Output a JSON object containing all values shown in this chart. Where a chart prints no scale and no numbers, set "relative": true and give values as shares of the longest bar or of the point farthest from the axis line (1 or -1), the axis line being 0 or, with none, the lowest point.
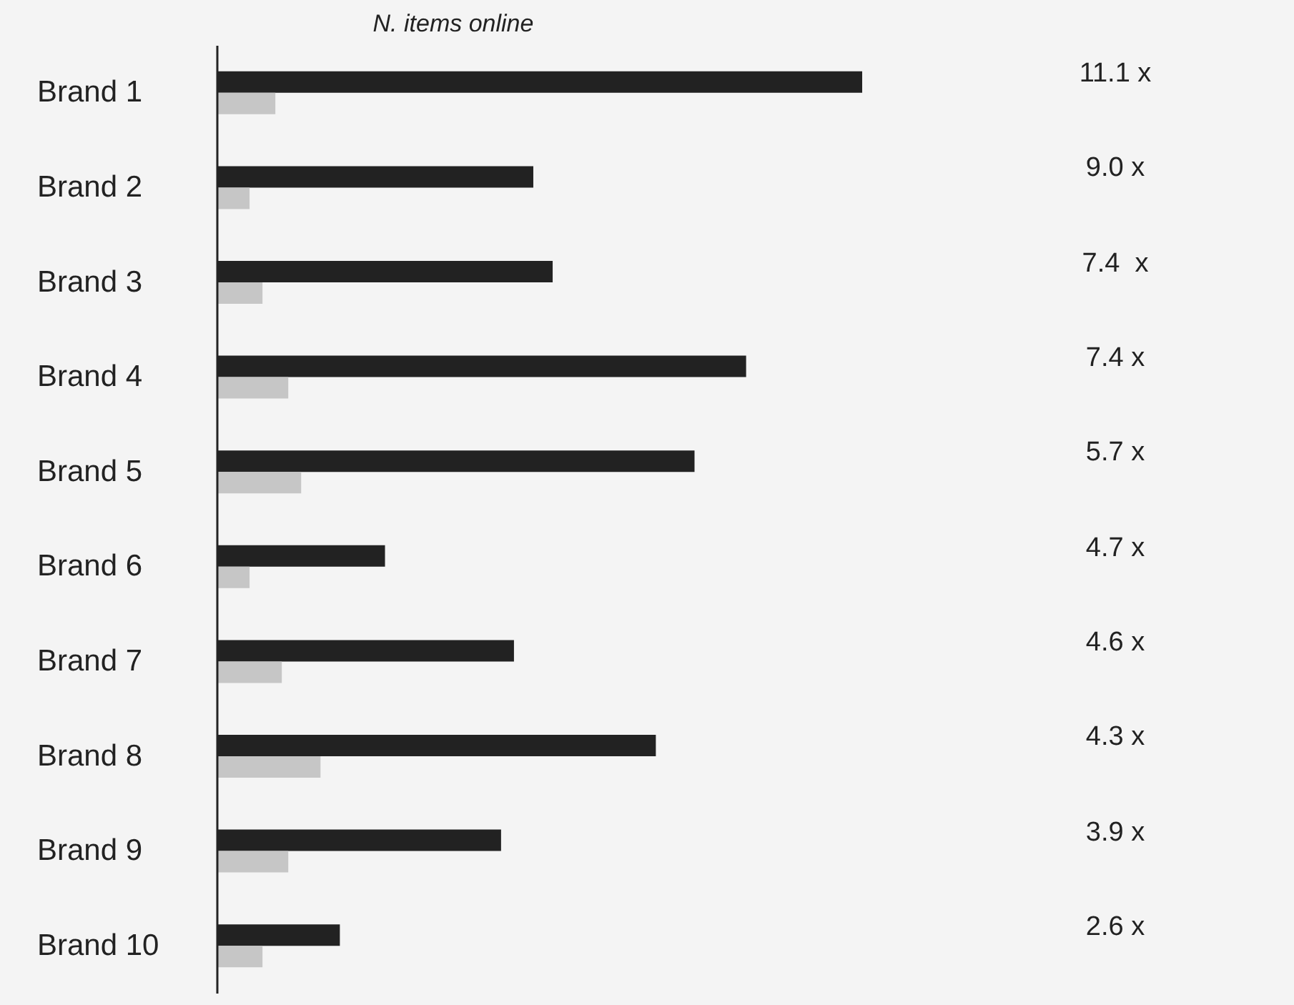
{
  "chart_data": {
    "type": "bar",
    "orientation": "horizontal",
    "relative": true,
    "title": "N. items online",
    "categories": [
      "Brand 1",
      "Brand 2",
      "Brand 3",
      "Brand 4",
      "Brand 5",
      "Brand 6",
      "Brand 7",
      "Brand 8",
      "Brand 9",
      "Brand 10"
    ],
    "series": [
      {
        "color": "#222222",
        "values": [
          1,
          0.49,
          0.52,
          0.82,
          0.74,
          0.26,
          0.46,
          0.68,
          0.44,
          0.19
        ]
      },
      {
        "color": "#c6c6c6",
        "values": [
          0.09,
          0.05,
          0.07,
          0.11,
          0.13,
          0.05,
          0.1,
          0.16,
          0.11,
          0.07
        ]
      }
    ],
    "annotations": [
      "11.1 x",
      "9.0 x",
      "7.4  x",
      "7.4 x",
      "5.7 x",
      "4.7 x",
      "4.6 x",
      "4.3 x",
      "3.9 x",
      "2.6 x"
    ]
  }
}
